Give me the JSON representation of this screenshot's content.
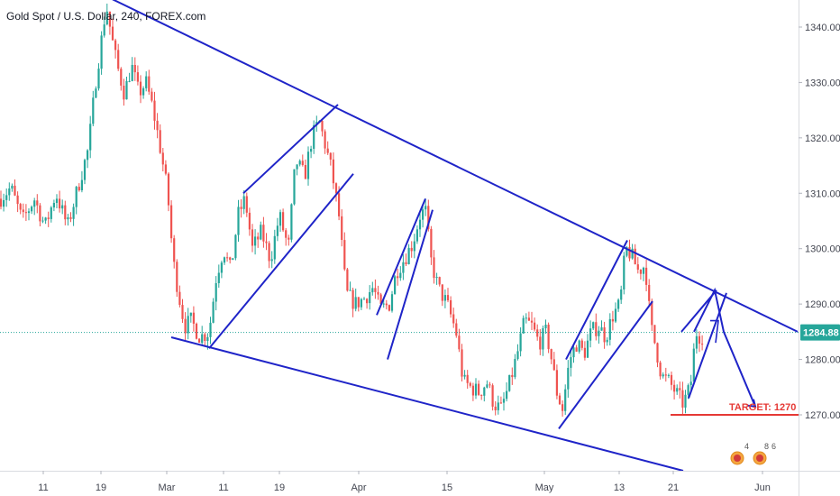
{
  "chart_data": {
    "type": "candlestick",
    "title": "Gold Spot / U.S. Dollar, 240, FOREX.com",
    "y_ticks": [
      1270,
      1280,
      1290,
      1300,
      1310,
      1320,
      1330,
      1340
    ],
    "y_tick_labels": [
      "1270.00",
      "1280.00",
      "1290.00",
      "1300.00",
      "1310.00",
      "1320.00",
      "1330.00",
      "1340.00"
    ],
    "ylim": [
      1260.3,
      1344.1
    ],
    "x_ticks": [
      "11",
      "19",
      "Mar",
      "11",
      "19",
      "Apr",
      "15",
      "May",
      "13",
      "21",
      "Jun"
    ],
    "current_price": 1284.88,
    "current_price_label": "1284.88",
    "target_price": 1270,
    "target_label": "TARGET: 1270",
    "price_path": [
      [
        0,
        1309
      ],
      [
        12,
        1311
      ],
      [
        25,
        1305
      ],
      [
        38,
        1309
      ],
      [
        50,
        1304
      ],
      [
        62,
        1310
      ],
      [
        75,
        1304
      ],
      [
        88,
        1312
      ],
      [
        98,
        1318
      ],
      [
        106,
        1330
      ],
      [
        112,
        1337
      ],
      [
        118,
        1344
      ],
      [
        124,
        1338
      ],
      [
        130,
        1333
      ],
      [
        138,
        1328
      ],
      [
        146,
        1333
      ],
      [
        154,
        1328
      ],
      [
        162,
        1330
      ],
      [
        170,
        1325
      ],
      [
        178,
        1318
      ],
      [
        186,
        1310
      ],
      [
        192,
        1298
      ],
      [
        198,
        1292
      ],
      [
        205,
        1286
      ],
      [
        212,
        1287
      ],
      [
        222,
        1284
      ],
      [
        232,
        1285
      ],
      [
        240,
        1295
      ],
      [
        248,
        1300
      ],
      [
        256,
        1296
      ],
      [
        264,
        1306
      ],
      [
        272,
        1309
      ],
      [
        280,
        1300
      ],
      [
        290,
        1303
      ],
      [
        300,
        1298
      ],
      [
        310,
        1306
      ],
      [
        320,
        1300
      ],
      [
        328,
        1316
      ],
      [
        338,
        1313
      ],
      [
        346,
        1320
      ],
      [
        354,
        1323
      ],
      [
        362,
        1318
      ],
      [
        368,
        1314
      ],
      [
        376,
        1306
      ],
      [
        384,
        1292
      ],
      [
        394,
        1290
      ],
      [
        404,
        1291
      ],
      [
        414,
        1293
      ],
      [
        422,
        1289
      ],
      [
        432,
        1290
      ],
      [
        440,
        1296
      ],
      [
        448,
        1298
      ],
      [
        458,
        1301
      ],
      [
        466,
        1306
      ],
      [
        472,
        1307
      ],
      [
        478,
        1298
      ],
      [
        486,
        1293
      ],
      [
        496,
        1290
      ],
      [
        506,
        1285
      ],
      [
        514,
        1276
      ],
      [
        522,
        1275
      ],
      [
        532,
        1274
      ],
      [
        540,
        1276
      ],
      [
        548,
        1272
      ],
      [
        556,
        1271
      ],
      [
        566,
        1276
      ],
      [
        574,
        1281
      ],
      [
        582,
        1287
      ],
      [
        590,
        1286
      ],
      [
        598,
        1283
      ],
      [
        606,
        1285
      ],
      [
        612,
        1280
      ],
      [
        618,
        1274
      ],
      [
        624,
        1271
      ],
      [
        632,
        1280
      ],
      [
        640,
        1283
      ],
      [
        648,
        1281
      ],
      [
        656,
        1285
      ],
      [
        664,
        1286
      ],
      [
        672,
        1284
      ],
      [
        680,
        1288
      ],
      [
        688,
        1290
      ],
      [
        694,
        1300
      ],
      [
        700,
        1299
      ],
      [
        708,
        1296
      ],
      [
        716,
        1297
      ],
      [
        722,
        1286
      ],
      [
        728,
        1282
      ],
      [
        734,
        1277
      ],
      [
        742,
        1276
      ],
      [
        750,
        1274
      ],
      [
        758,
        1272
      ],
      [
        766,
        1275
      ],
      [
        772,
        1285
      ],
      [
        778,
        1284
      ],
      [
        782,
        1285
      ]
    ],
    "analysis_lines": [
      {
        "name": "upper-wedge-line",
        "from": [
          125,
          1345
        ],
        "to": [
          885,
          1285
        ]
      },
      {
        "name": "lower-wedge-line",
        "from": [
          190,
          1284
        ],
        "to": [
          758,
          1259.9
        ]
      },
      {
        "name": "channel-1-top",
        "from": [
          270,
          1310
        ],
        "to": [
          375,
          1326
        ]
      },
      {
        "name": "channel-1-bottom",
        "from": [
          232,
          1282
        ],
        "to": [
          392,
          1313.5
        ]
      },
      {
        "name": "channel-2-top",
        "from": [
          418,
          1288
        ],
        "to": [
          472,
          1309
        ]
      },
      {
        "name": "channel-2-bottom",
        "from": [
          430,
          1280
        ],
        "to": [
          480,
          1307
        ]
      },
      {
        "name": "channel-3-top",
        "from": [
          628,
          1280
        ],
        "to": [
          696,
          1301.5
        ]
      },
      {
        "name": "channel-3-bottom",
        "from": [
          620,
          1267.5
        ],
        "to": [
          724,
          1290.5
        ]
      },
      {
        "name": "channel-4-top",
        "from": [
          756,
          1285
        ],
        "to": [
          795,
          1292.5
        ]
      },
      {
        "name": "channel-4-bottom",
        "from": [
          764,
          1273
        ],
        "to": [
          806,
          1292
        ]
      }
    ],
    "projection_path": [
      [
        770,
        1285
      ],
      [
        793,
        1292.5
      ],
      [
        803,
        1285
      ],
      [
        838,
        1271.5
      ]
    ],
    "projection_fork": [
      [
        788,
        1287
      ],
      [
        797,
        1287
      ],
      [
        794,
        1283
      ]
    ],
    "colors": {
      "bull": "#26a69a",
      "bear": "#ef5350",
      "drawing": "#1f24c8",
      "target": "#e53935",
      "price_badge": "#26a69a"
    }
  }
}
